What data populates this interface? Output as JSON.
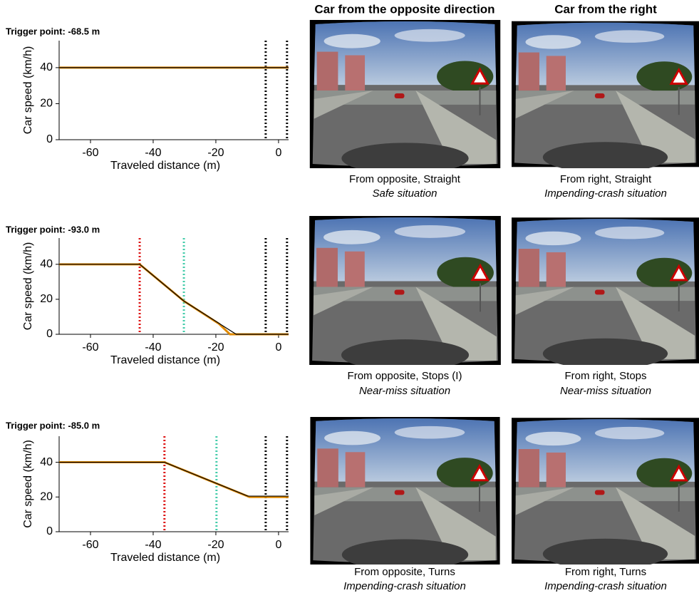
{
  "columns": [
    "Car from the opposite direction",
    "Car from the right"
  ],
  "captions": [
    [
      {
        "line1": "From opposite, Straight",
        "line2": "Safe situation"
      },
      {
        "line1": "From right, Straight",
        "line2": "Impending-crash situation"
      }
    ],
    [
      {
        "line1": "From opposite, Stops (I)",
        "line2": "Near-miss situation"
      },
      {
        "line1": "From right, Stops",
        "line2": "Near-miss situation"
      }
    ],
    [
      {
        "line1": "From opposite, Turns",
        "line2": "Impending-crash situation"
      },
      {
        "line1": "From right, Turns",
        "line2": "Impending-crash situation"
      }
    ]
  ],
  "chart_data": [
    {
      "type": "line",
      "title": "Trigger point: -68.5 m",
      "xlabel": "Traveled distance (m)",
      "ylabel": "Car speed (km/h)",
      "xlim": [
        -70,
        3.2
      ],
      "ylim": [
        0,
        55
      ],
      "xticks": [
        -60,
        -40,
        -20,
        0
      ],
      "yticks": [
        0,
        20,
        40
      ],
      "series": [
        {
          "color": "#e08a00",
          "x": [
            -70,
            3.2
          ],
          "values": [
            40,
            40
          ]
        },
        {
          "color": "#000000",
          "x": [
            -70,
            3.2
          ],
          "values": [
            40,
            40
          ]
        }
      ],
      "vlines": [
        {
          "x": -4.1,
          "color": "#000000"
        },
        {
          "x": 2.7,
          "color": "#000000"
        }
      ]
    },
    {
      "type": "line",
      "title": "Trigger point: -93.0 m",
      "xlabel": "Traveled distance (m)",
      "ylabel": "Car speed (km/h)",
      "xlim": [
        -70,
        3.2
      ],
      "ylim": [
        0,
        55
      ],
      "xticks": [
        -60,
        -40,
        -20,
        0
      ],
      "yticks": [
        0,
        20,
        40
      ],
      "series": [
        {
          "color": "#e08a00",
          "x": [
            -70,
            -44.3,
            -30.2,
            -19,
            -15.5,
            3.2
          ],
          "values": [
            40,
            40,
            19,
            6,
            0,
            0
          ]
        },
        {
          "color": "#000000",
          "x": [
            -70,
            -44.3,
            -30.2,
            -13.5,
            3.2
          ],
          "values": [
            40,
            40,
            19,
            0,
            0
          ]
        }
      ],
      "vlines": [
        {
          "x": -44.3,
          "color": "#dd1111"
        },
        {
          "x": -30.2,
          "color": "#44ccaa"
        },
        {
          "x": -4.1,
          "color": "#000000"
        },
        {
          "x": 2.7,
          "color": "#000000"
        }
      ]
    },
    {
      "type": "line",
      "title": "Trigger point: -85.0 m",
      "xlabel": "Traveled distance (m)",
      "ylabel": "Car speed (km/h)",
      "xlim": [
        -70,
        3.2
      ],
      "ylim": [
        0,
        55
      ],
      "xticks": [
        -60,
        -40,
        -20,
        0
      ],
      "yticks": [
        0,
        20,
        40
      ],
      "series": [
        {
          "color": "#e08a00",
          "x": [
            -70,
            -36.4,
            -9.3,
            3.2
          ],
          "values": [
            40,
            40,
            20,
            20
          ]
        },
        {
          "color": "#000000",
          "x": [
            -70,
            -36.4,
            -9.8,
            3.2
          ],
          "values": [
            40,
            40,
            20.5,
            20.5
          ]
        }
      ],
      "vlines": [
        {
          "x": -36.4,
          "color": "#dd1111"
        },
        {
          "x": -19.8,
          "color": "#44ccaa"
        },
        {
          "x": -4.1,
          "color": "#000000"
        },
        {
          "x": 2.7,
          "color": "#000000"
        }
      ]
    }
  ]
}
